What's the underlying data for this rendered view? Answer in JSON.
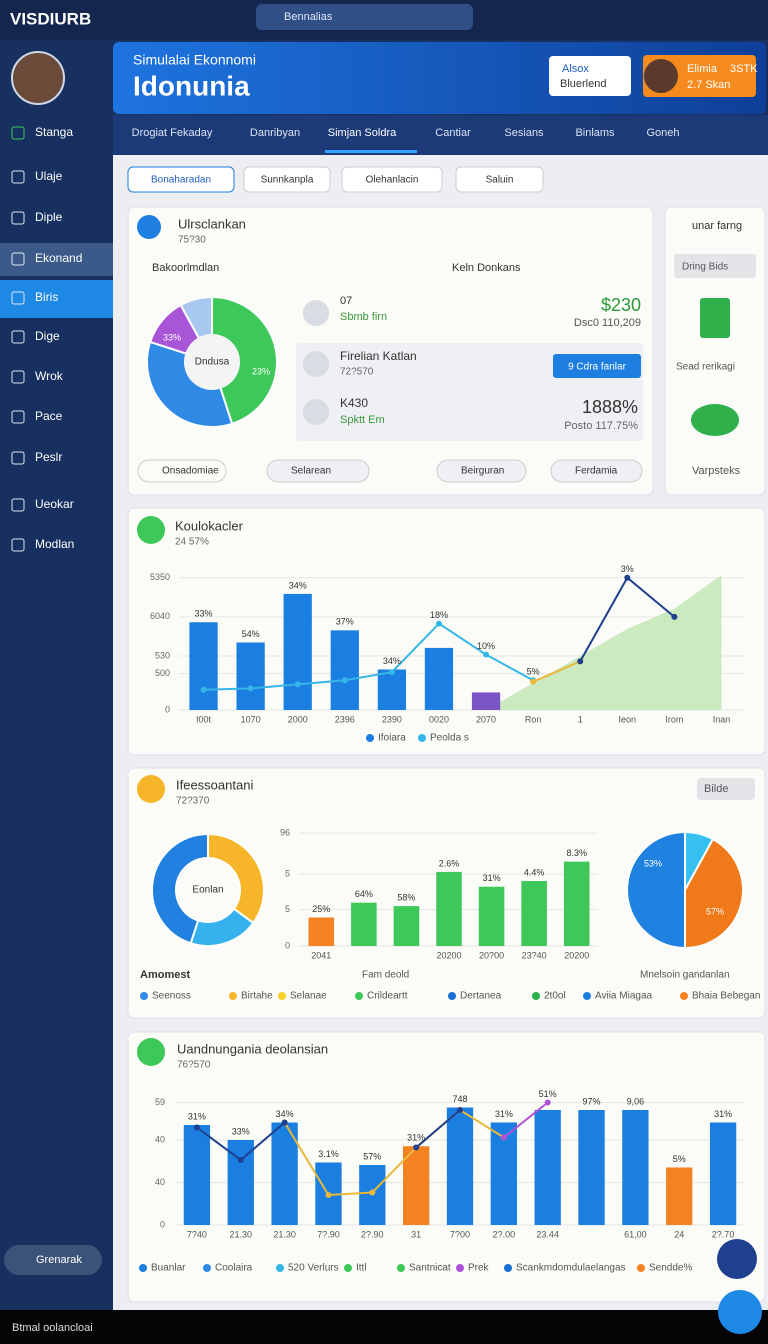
{
  "topbar": {
    "logo": "VISDIURB",
    "search": "Bennalias"
  },
  "sidebar": {
    "items": [
      "Stanga",
      "Ulaje",
      "Diple",
      "Ekonand",
      "Biris",
      "Dige",
      "Wrok",
      "Pace",
      "Peslr",
      "Ueokar",
      "Modlan"
    ],
    "button": "Grenarak"
  },
  "banner": {
    "subtitle": "Simulalai Ekonnomi",
    "title": "Idonunia",
    "box_top": "Alsox",
    "box_bottom": "Bluerlend",
    "profile_name": "Elimia",
    "profile_code": "3STK",
    "profile_sub": "2.7 Skan"
  },
  "tabs": [
    "Drogiat Fekaday",
    "Danribyan",
    "Simjan Soldra",
    "Cantiar",
    "Sesians",
    "Binlams",
    "Goneh"
  ],
  "filters": [
    "Bonaharadan",
    "Sunnkanpla",
    "Olehanlacin",
    "Saluin"
  ],
  "card1": {
    "title": "Ulrsclankan",
    "subtitle": "75?30",
    "dropdown": "Bakoorlmdlan",
    "legend": "Keln Donkans",
    "rows": [
      {
        "title": "07",
        "sub": "Sbmb firn",
        "value": "$230",
        "value_sub": "Dsc0 110,209"
      },
      {
        "title": "Firelian Katlan",
        "sub": "72?570",
        "button": "9 Cdra fanlar"
      },
      {
        "title": "K430",
        "sub": "Spktt Em",
        "value": "1888%",
        "value_sub": "Posto 117.75%"
      }
    ],
    "chips": [
      "Onsadomiae",
      "Selarean",
      "Beirguran",
      "Ferdamia"
    ]
  },
  "side_card": {
    "search": "unar farng",
    "button": "Dring Bids",
    "label": "Sead rerikagi",
    "footer": "Varpsteks"
  },
  "card2": {
    "title": "Koulokacler",
    "subtitle": "24 57%"
  },
  "card3": {
    "title": "Ifeessoantani",
    "subtitle": "72?370",
    "button": "Bilde",
    "left_label": "Amomest",
    "mid_label": "Fam deold",
    "right_label": "Mnelsoin gandanlan",
    "legend": [
      {
        "name": "Seenoss",
        "color": "#2f8ae6"
      },
      {
        "name": "Birtahe",
        "color": "#f7b62a"
      },
      {
        "name": "Selanae",
        "color": "#f7d02a"
      },
      {
        "name": "Crildeartt",
        "color": "#3ec85a"
      },
      {
        "name": "Dertanea",
        "color": "#1a6fd0"
      },
      {
        "name": "2t0ol",
        "color": "#2bb04a"
      },
      {
        "name": "Aviia Miagaa",
        "color": "#1a7fe0"
      },
      {
        "name": "Bhaia Bebegan",
        "color": "#f58220"
      }
    ]
  },
  "card4": {
    "title": "Uandnungania deolansian",
    "subtitle": "76?570",
    "legend": [
      {
        "name": "Buanlar",
        "color": "#1a7fe0"
      },
      {
        "name": "Coolaira",
        "color": "#2f8ae6"
      },
      {
        "name": "520 Verlurs",
        "color": "#35b6e6"
      },
      {
        "name": "Ittl",
        "color": "#3ec85a"
      },
      {
        "name": "Santnicat",
        "color": "#3ec85a"
      },
      {
        "name": "Prek",
        "color": "#b052d8"
      },
      {
        "name": "Scankmdomdulaelangas",
        "color": "#1a6fd0"
      },
      {
        "name": "Sendde%",
        "color": "#f58220"
      }
    ]
  },
  "footer": "Btmal oolancloai",
  "chart_data": [
    {
      "type": "pie",
      "center_label": "Dndusa",
      "values": [
        45,
        35,
        12,
        8
      ],
      "colors": [
        "#3ec85a",
        "#2f8ae6",
        "#a855d8",
        "#a9c8f0"
      ],
      "annotations": [
        "33%",
        "23%"
      ]
    },
    {
      "type": "bar",
      "categories": [
        "I00t",
        "1070",
        "2000",
        "2396",
        "2390",
        "0020",
        "2070",
        "Ron",
        "1",
        "Ieon",
        "Irom",
        "Inan"
      ],
      "ylim": [
        0,
        100
      ],
      "yticks": [
        0,
        {
          "value": 27,
          "label": "500"
        },
        {
          "value": 40,
          "label": "530"
        },
        {
          "value": 69,
          "label": "6040"
        },
        {
          "value": 98,
          "label": "5350"
        }
      ],
      "bar_labels": [
        "33%",
        "54%",
        "34%",
        "37%",
        "34%",
        "18%",
        "10%",
        "5%",
        null,
        "3%",
        null,
        null
      ],
      "series": [
        {
          "kind": "area",
          "color": "#bfe6b0",
          "values": [
            null,
            null,
            null,
            null,
            null,
            null,
            0,
            20,
            40,
            60,
            75,
            100
          ]
        },
        {
          "name": "Ifoiara",
          "kind": "bar",
          "color": "#1a7fe0",
          "colors": [
            "#1a7fe0",
            "#1a7fe0",
            "#1a7fe0",
            "#1a7fe0",
            "#1a7fe0",
            "#1a7fe0",
            "#7a55c8"
          ],
          "values": [
            65,
            50,
            86,
            59,
            30,
            46,
            13,
            null,
            null,
            null,
            null,
            null
          ]
        },
        {
          "name": "Peolda s",
          "kind": "line",
          "color": "#35b6e6",
          "values": [
            15,
            16,
            19,
            22,
            28,
            64,
            41,
            22,
            null,
            null,
            null,
            null
          ]
        },
        {
          "kind": "line",
          "color": "#e8b83a",
          "values": [
            null,
            null,
            null,
            null,
            null,
            null,
            null,
            21,
            36,
            null,
            null,
            null
          ]
        },
        {
          "kind": "line",
          "color": "#1f3f8f",
          "values": [
            null,
            null,
            null,
            null,
            null,
            null,
            null,
            null,
            36,
            98,
            69,
            null
          ]
        }
      ]
    },
    {
      "type": "donut",
      "center_label": "Eonlan",
      "values": [
        35,
        20,
        45
      ],
      "colors": [
        "#f7b62a",
        "#35b2ee",
        "#2280e0"
      ]
    },
    {
      "type": "bar",
      "categories": [
        "2041",
        null,
        null,
        "20200",
        "20?00",
        "23?40",
        "20200"
      ],
      "ylim": [
        0,
        100
      ],
      "yticks": [
        0,
        {
          "value": 32,
          "label": "5"
        },
        {
          "value": 63,
          "label": "5"
        },
        {
          "value": 99,
          "label": "96"
        }
      ],
      "bar_labels": [
        "25%",
        "64%",
        "58%",
        "2.6%",
        "31%",
        "4.4%",
        "8.3%"
      ],
      "series": [
        {
          "kind": "bar",
          "color": "#3ec85a",
          "colors": [
            "#f58220",
            "#3ec85a",
            "#3ec85a",
            "#3ec85a",
            "#3ec85a",
            "#3ec85a",
            "#3ec85a"
          ],
          "values": [
            25,
            38,
            35,
            65,
            52,
            57,
            74
          ]
        }
      ]
    },
    {
      "type": "pie",
      "values": [
        8,
        42,
        50
      ],
      "colors": [
        "#35c0f0",
        "#f07a1a",
        "#1f82e0"
      ],
      "annotations": [
        "53%",
        "57%"
      ]
    },
    {
      "type": "bar",
      "categories": [
        "7?40",
        "21.30",
        "21.30",
        "7?.90",
        "2?.90",
        "31",
        "7?00",
        "2?.00",
        "23.44",
        null,
        "61,00",
        "24",
        "2?.70"
      ],
      "ylim": [
        0,
        100
      ],
      "yticks": [
        0,
        {
          "value": 34,
          "label": "40"
        },
        {
          "value": 68,
          "label": "40"
        },
        {
          "value": 98,
          "label": "59"
        }
      ],
      "bar_labels": [
        "31%",
        "33%",
        "34%",
        "3.1%",
        "57%",
        "31%",
        "748",
        "31%",
        "51%",
        "97%",
        "9,06",
        "5%",
        "31%"
      ],
      "series": [
        {
          "kind": "bar",
          "color": "#1a7fe0",
          "colors": [
            "#1a7fe0",
            "#1a7fe0",
            "#1a7fe0",
            "#1a7fe0",
            "#1a7fe0",
            "#f58220",
            "#1a7fe0",
            "#1a7fe0",
            "#1a7fe0",
            "#1a7fe0",
            "#1a7fe0",
            "#f58220",
            "#1a7fe0"
          ],
          "values": [
            80,
            68,
            82,
            50,
            48,
            63,
            94,
            82,
            92,
            92,
            92,
            46,
            82
          ]
        },
        {
          "kind": "line",
          "color": "#e8b83a",
          "values": [
            null,
            null,
            82,
            24,
            26,
            62,
            92,
            70,
            null,
            null,
            null,
            null,
            null
          ]
        },
        {
          "kind": "line",
          "color": "#1f3f8f",
          "values": [
            78,
            52,
            82,
            null,
            null,
            62,
            92,
            null,
            null,
            null,
            null,
            null,
            null
          ]
        },
        {
          "kind": "line",
          "color": "#b052d8",
          "values": [
            null,
            null,
            null,
            null,
            null,
            null,
            null,
            70,
            98,
            null,
            null,
            null,
            null
          ]
        }
      ]
    }
  ]
}
